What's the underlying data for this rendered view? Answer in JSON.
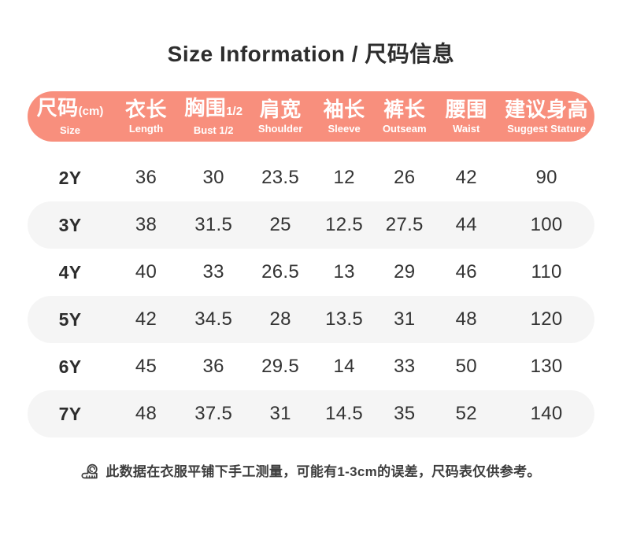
{
  "title": "Size Information / 尺码信息",
  "colors": {
    "header_bg": "#F88F7D",
    "header_text": "#FFFFFF",
    "row_alt_bg": "#F5F5F5",
    "text_dark": "#333333",
    "note_text": "#3E3E3E"
  },
  "table": {
    "columns": [
      {
        "cn": "尺码",
        "suffix": "(cm)",
        "en": "Size"
      },
      {
        "cn": "衣长",
        "suffix": "",
        "en": "Length"
      },
      {
        "cn": "胸围",
        "suffix": "1/2",
        "en": "Bust 1/2"
      },
      {
        "cn": "肩宽",
        "suffix": "",
        "en": "Shoulder"
      },
      {
        "cn": "袖长",
        "suffix": "",
        "en": "Sleeve"
      },
      {
        "cn": "裤长",
        "suffix": "",
        "en": "Outseam"
      },
      {
        "cn": "腰围",
        "suffix": "",
        "en": "Waist"
      },
      {
        "cn": "建议身高",
        "suffix": "",
        "en": "Suggest Stature"
      }
    ],
    "rows": [
      {
        "size": "2Y",
        "values": [
          "36",
          "30",
          "23.5",
          "12",
          "26",
          "42",
          "90"
        ]
      },
      {
        "size": "3Y",
        "values": [
          "38",
          "31.5",
          "25",
          "12.5",
          "27.5",
          "44",
          "100"
        ]
      },
      {
        "size": "4Y",
        "values": [
          "40",
          "33",
          "26.5",
          "13",
          "29",
          "46",
          "110"
        ]
      },
      {
        "size": "5Y",
        "values": [
          "42",
          "34.5",
          "28",
          "13.5",
          "31",
          "48",
          "120"
        ]
      },
      {
        "size": "6Y",
        "values": [
          "45",
          "36",
          "29.5",
          "14",
          "33",
          "50",
          "130"
        ]
      },
      {
        "size": "7Y",
        "values": [
          "48",
          "37.5",
          "31",
          "14.5",
          "35",
          "52",
          "140"
        ]
      }
    ]
  },
  "footer": {
    "icon": "measuring-tape-icon",
    "note": "此数据在衣服平铺下手工测量，可能有1-3cm的误差，尺码表仅供参考。"
  },
  "chart_data": {
    "type": "table",
    "title": "Size Information / 尺码信息",
    "columns": [
      "尺码(cm) Size",
      "衣长 Length",
      "胸围1/2 Bust 1/2",
      "肩宽 Shoulder",
      "袖长 Sleeve",
      "裤长 Outseam",
      "腰围 Waist",
      "建议身高 Suggest Stature"
    ],
    "rows": [
      [
        "2Y",
        36,
        30,
        23.5,
        12,
        26,
        42,
        90
      ],
      [
        "3Y",
        38,
        31.5,
        25,
        12.5,
        27.5,
        44,
        100
      ],
      [
        "4Y",
        40,
        33,
        26.5,
        13,
        29,
        46,
        110
      ],
      [
        "5Y",
        42,
        34.5,
        28,
        13.5,
        31,
        48,
        120
      ],
      [
        "6Y",
        45,
        36,
        29.5,
        14,
        33,
        50,
        130
      ],
      [
        "7Y",
        48,
        37.5,
        31,
        14.5,
        35,
        52,
        140
      ]
    ],
    "note": "此数据在衣服平铺下手工测量，可能有1-3cm的误差，尺码表仅供参考。"
  }
}
